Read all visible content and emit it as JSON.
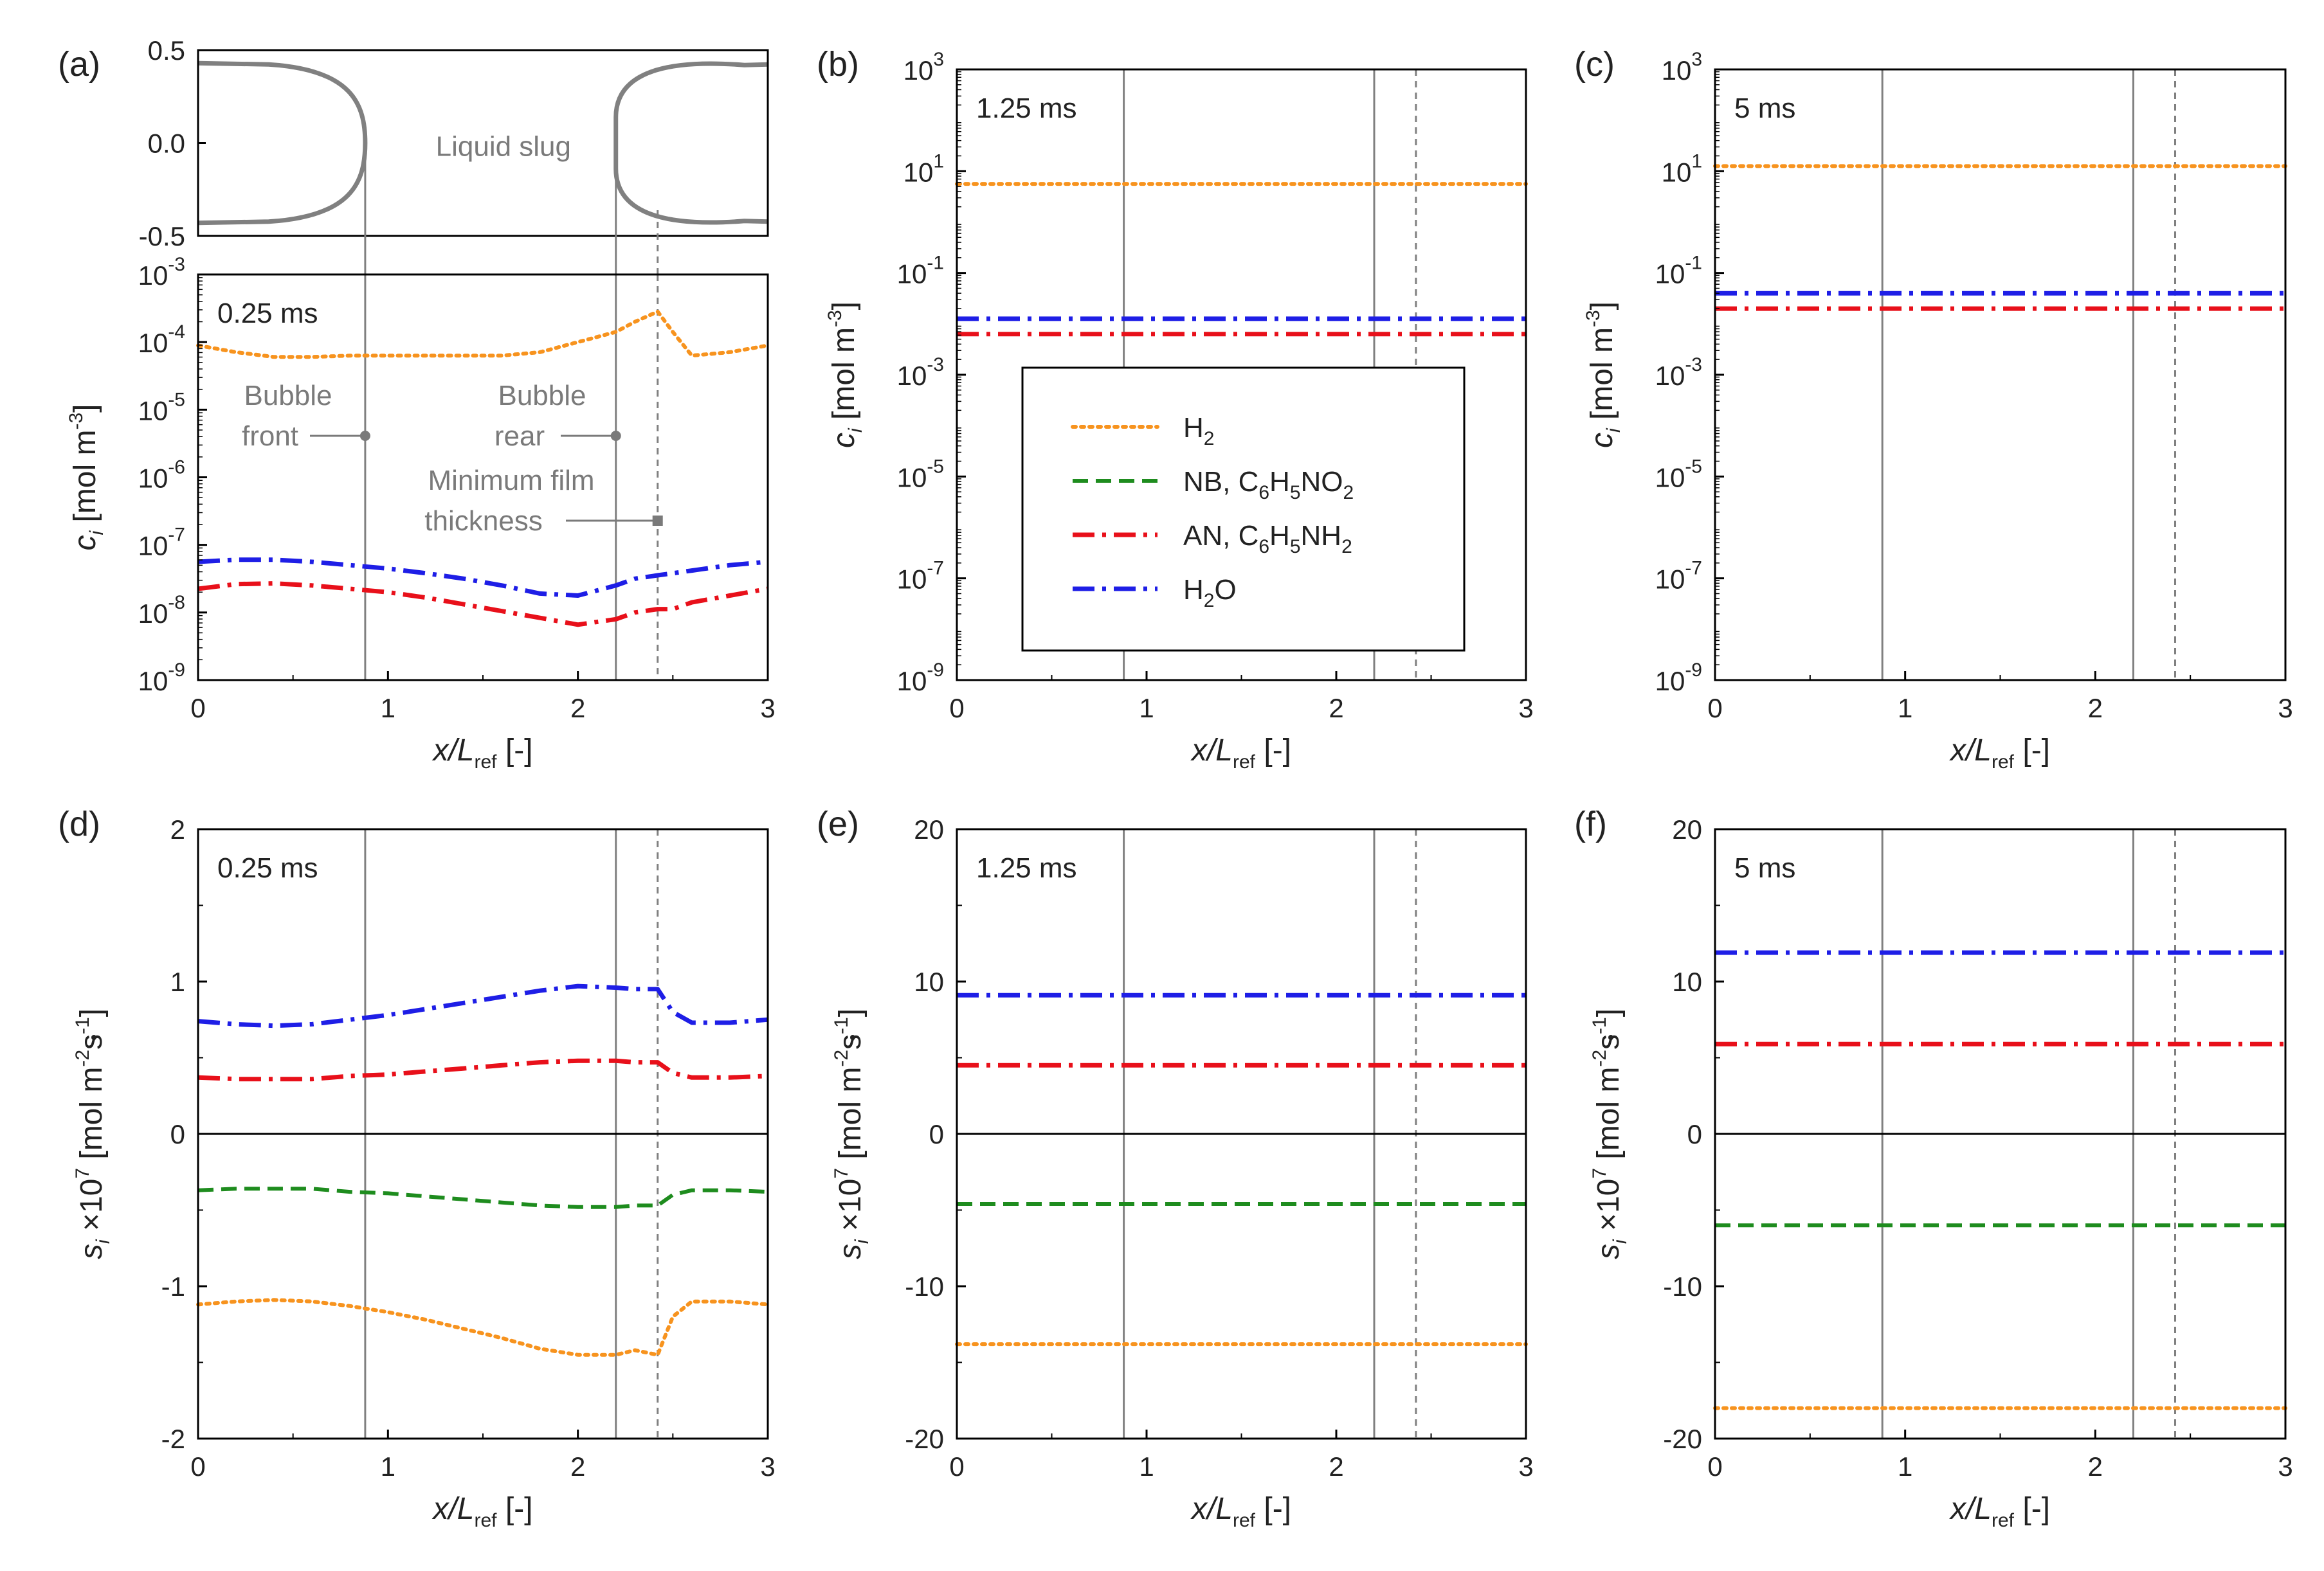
{
  "figure_title": "",
  "colors": {
    "H2": "#F7931E",
    "NB": "#1E8C1E",
    "AN": "#E8101A",
    "H2O": "#1E1EE6",
    "interface": "#808080",
    "zero": "#000000"
  },
  "legend": {
    "h2": {
      "main": "H",
      "sub": "2"
    },
    "nb": {
      "a": "NB, C",
      "s1": "6",
      "b": "H",
      "s2": "5",
      "c": "NO",
      "s3": "2"
    },
    "an": {
      "a": "AN, C",
      "s1": "6",
      "b": "H",
      "s2": "5",
      "c": "NH",
      "s3": "2"
    },
    "h2o": {
      "a": "H",
      "s1": "2",
      "b": "O"
    }
  },
  "axis_text": {
    "x_italic": "x/L",
    "x_sub": "ref",
    "x_unit": " [-]",
    "c_italic": "c",
    "c_sub": "i",
    "c_unit": " [mol m",
    "c_exp": "-3",
    "c_close": "]",
    "s_italic": "s",
    "s_sub": "i",
    "s_times": " ×10",
    "s_exp": "7",
    "s_unit": " [mol m",
    "s_exp2": "-2",
    "s_unit2": "s",
    "s_exp3": "-1",
    "s_close": "]"
  },
  "annotations": {
    "liquid_slug": "Liquid slug",
    "bubble_front_1": "Bubble",
    "bubble_front_2": "front",
    "bubble_rear_1": "Bubble",
    "bubble_rear_2": "rear",
    "min_film_1": "Minimum film",
    "min_film_2": "thickness"
  },
  "chart_data": [
    {
      "panel": "(a) geometry",
      "type": "line",
      "title": "",
      "xlim": [
        0,
        3
      ],
      "ylim": [
        -0.5,
        0.5
      ],
      "yticks": [
        "0.5",
        "0.0",
        "-0.5"
      ],
      "interfaces": {
        "bubble_front": 0.88,
        "bubble_rear": 2.2,
        "min_film": 2.42
      }
    },
    {
      "panel": "(a)",
      "type": "line",
      "time_label": "0.25 ms",
      "yscale": "log",
      "ylim_exp": [
        -9,
        -3
      ],
      "xlim": [
        0,
        3
      ],
      "xticks": [
        "0",
        "1",
        "2",
        "3"
      ],
      "x": [
        0,
        0.2,
        0.4,
        0.6,
        0.8,
        1.0,
        1.2,
        1.4,
        1.6,
        1.8,
        2.0,
        2.2,
        2.3,
        2.42,
        2.5,
        2.6,
        2.8,
        3.0
      ],
      "series": [
        {
          "name": "H2",
          "log10": [
            -4.05,
            -4.15,
            -4.22,
            -4.22,
            -4.2,
            -4.2,
            -4.2,
            -4.2,
            -4.2,
            -4.15,
            -4.0,
            -3.85,
            -3.7,
            -3.55,
            -3.85,
            -4.2,
            -4.15,
            -4.05
          ]
        },
        {
          "name": "AN",
          "log10": [
            -7.65,
            -7.58,
            -7.57,
            -7.6,
            -7.65,
            -7.7,
            -7.78,
            -7.88,
            -7.98,
            -8.08,
            -8.18,
            -8.1,
            -8.0,
            -7.95,
            -7.95,
            -7.85,
            -7.75,
            -7.65
          ]
        },
        {
          "name": "H2O",
          "log10": [
            -7.25,
            -7.22,
            -7.22,
            -7.25,
            -7.3,
            -7.35,
            -7.42,
            -7.5,
            -7.6,
            -7.72,
            -7.75,
            -7.6,
            -7.5,
            -7.45,
            -7.42,
            -7.38,
            -7.3,
            -7.25
          ]
        }
      ],
      "interfaces": {
        "bubble_front": 0.88,
        "bubble_rear": 2.2,
        "min_film": 2.42
      }
    },
    {
      "panel": "(b)",
      "type": "line",
      "time_label": "1.25 ms",
      "yscale": "log",
      "ylim_exp": [
        -9,
        3
      ],
      "xlim": [
        0,
        3
      ],
      "xticks": [
        "0",
        "1",
        "2",
        "3"
      ],
      "x": [
        0,
        1.5,
        3.0
      ],
      "series": [
        {
          "name": "H2",
          "log10": [
            0.75,
            0.75,
            0.75
          ]
        },
        {
          "name": "AN",
          "log10": [
            -2.2,
            -2.2,
            -2.2
          ]
        },
        {
          "name": "H2O",
          "log10": [
            -1.9,
            -1.9,
            -1.9
          ]
        }
      ],
      "interfaces": {
        "bubble_front": 0.88,
        "bubble_rear": 2.2,
        "min_film": 2.42
      }
    },
    {
      "panel": "(c)",
      "type": "line",
      "time_label": "5 ms",
      "yscale": "log",
      "ylim_exp": [
        -9,
        3
      ],
      "xlim": [
        0,
        3
      ],
      "xticks": [
        "0",
        "1",
        "2",
        "3"
      ],
      "x": [
        0,
        1.5,
        3.0
      ],
      "series": [
        {
          "name": "H2",
          "log10": [
            1.1,
            1.1,
            1.1
          ]
        },
        {
          "name": "AN",
          "log10": [
            -1.7,
            -1.7,
            -1.7
          ]
        },
        {
          "name": "H2O",
          "log10": [
            -1.4,
            -1.4,
            -1.4
          ]
        }
      ],
      "interfaces": {
        "bubble_front": 0.88,
        "bubble_rear": 2.2,
        "min_film": 2.42
      }
    },
    {
      "panel": "(d)",
      "type": "line",
      "time_label": "0.25 ms",
      "ylim": [
        -2,
        2
      ],
      "yticks": [
        "-2",
        "-1",
        "0",
        "1",
        "2"
      ],
      "xlim": [
        0,
        3
      ],
      "xticks": [
        "0",
        "1",
        "2",
        "3"
      ],
      "x": [
        0,
        0.2,
        0.4,
        0.6,
        0.8,
        1.0,
        1.2,
        1.4,
        1.6,
        1.8,
        2.0,
        2.2,
        2.3,
        2.42,
        2.5,
        2.6,
        2.8,
        3.0
      ],
      "series": [
        {
          "name": "H2O",
          "values": [
            0.74,
            0.72,
            0.71,
            0.72,
            0.75,
            0.78,
            0.82,
            0.86,
            0.9,
            0.94,
            0.97,
            0.96,
            0.95,
            0.95,
            0.8,
            0.73,
            0.73,
            0.75
          ]
        },
        {
          "name": "AN",
          "values": [
            0.37,
            0.36,
            0.36,
            0.36,
            0.38,
            0.39,
            0.41,
            0.43,
            0.45,
            0.47,
            0.48,
            0.48,
            0.47,
            0.47,
            0.4,
            0.37,
            0.37,
            0.38
          ]
        },
        {
          "name": "NB",
          "values": [
            -0.37,
            -0.36,
            -0.36,
            -0.36,
            -0.38,
            -0.39,
            -0.41,
            -0.43,
            -0.45,
            -0.47,
            -0.48,
            -0.48,
            -0.47,
            -0.47,
            -0.4,
            -0.37,
            -0.37,
            -0.38
          ]
        },
        {
          "name": "H2",
          "values": [
            -1.12,
            -1.1,
            -1.09,
            -1.1,
            -1.13,
            -1.17,
            -1.22,
            -1.28,
            -1.34,
            -1.41,
            -1.45,
            -1.45,
            -1.42,
            -1.45,
            -1.2,
            -1.1,
            -1.1,
            -1.12
          ]
        }
      ],
      "interfaces": {
        "bubble_front": 0.88,
        "bubble_rear": 2.2,
        "min_film": 2.42
      }
    },
    {
      "panel": "(e)",
      "type": "line",
      "time_label": "1.25 ms",
      "ylim": [
        -20,
        20
      ],
      "yticks": [
        "-20",
        "-10",
        "0",
        "10",
        "20"
      ],
      "xlim": [
        0,
        3
      ],
      "xticks": [
        "0",
        "1",
        "2",
        "3"
      ],
      "x": [
        0,
        1.5,
        3.0
      ],
      "series": [
        {
          "name": "H2O",
          "values": [
            9.1,
            9.1,
            9.1
          ]
        },
        {
          "name": "AN",
          "values": [
            4.5,
            4.5,
            4.5
          ]
        },
        {
          "name": "NB",
          "values": [
            -4.6,
            -4.6,
            -4.6
          ]
        },
        {
          "name": "H2",
          "values": [
            -13.8,
            -13.8,
            -13.8
          ]
        }
      ],
      "interfaces": {
        "bubble_front": 0.88,
        "bubble_rear": 2.2,
        "min_film": 2.42
      }
    },
    {
      "panel": "(f)",
      "type": "line",
      "time_label": "5 ms",
      "ylim": [
        -20,
        20
      ],
      "yticks": [
        "-20",
        "-10",
        "0",
        "10",
        "20"
      ],
      "xlim": [
        0,
        3
      ],
      "xticks": [
        "0",
        "1",
        "2",
        "3"
      ],
      "x": [
        0,
        1.5,
        3.0
      ],
      "series": [
        {
          "name": "H2O",
          "values": [
            11.9,
            11.9,
            11.9
          ]
        },
        {
          "name": "AN",
          "values": [
            5.9,
            5.9,
            5.9
          ]
        },
        {
          "name": "NB",
          "values": [
            -6.0,
            -6.0,
            -6.0
          ]
        },
        {
          "name": "H2",
          "values": [
            -18.0,
            -18.0,
            -18.0
          ]
        }
      ],
      "interfaces": {
        "bubble_front": 0.88,
        "bubble_rear": 2.2,
        "min_film": 2.42
      }
    }
  ]
}
